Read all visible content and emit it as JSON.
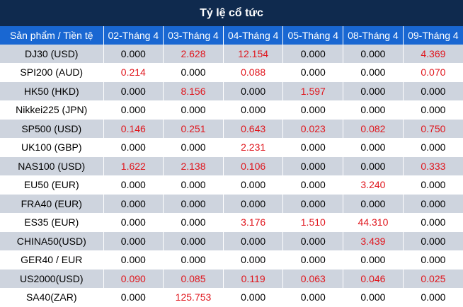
{
  "title": "Tỷ lệ cổ tức",
  "header": {
    "product": "Sản phẩm / Tiền tệ",
    "dates": [
      "02-Tháng 4",
      "03-Tháng 4",
      "04-Tháng 4",
      "05-Tháng 4",
      "08-Tháng 4",
      "09-Tháng 4"
    ]
  },
  "rows": [
    {
      "product": "DJ30 (USD)",
      "values": [
        "0.000",
        "2.628",
        "12.154",
        "0.000",
        "0.000",
        "4.369"
      ]
    },
    {
      "product": "SPI200 (AUD)",
      "values": [
        "0.214",
        "0.000",
        "0.088",
        "0.000",
        "0.000",
        "0.070"
      ]
    },
    {
      "product": "HK50 (HKD)",
      "values": [
        "0.000",
        "8.156",
        "0.000",
        "1.597",
        "0.000",
        "0.000"
      ]
    },
    {
      "product": "Nikkei225 (JPN)",
      "values": [
        "0.000",
        "0.000",
        "0.000",
        "0.000",
        "0.000",
        "0.000"
      ]
    },
    {
      "product": "SP500 (USD)",
      "values": [
        "0.146",
        "0.251",
        "0.643",
        "0.023",
        "0.082",
        "0.750"
      ]
    },
    {
      "product": "UK100 (GBP)",
      "values": [
        "0.000",
        "0.000",
        "2.231",
        "0.000",
        "0.000",
        "0.000"
      ]
    },
    {
      "product": "NAS100 (USD)",
      "values": [
        "1.622",
        "2.138",
        "0.106",
        "0.000",
        "0.000",
        "0.333"
      ]
    },
    {
      "product": "EU50 (EUR)",
      "values": [
        "0.000",
        "0.000",
        "0.000",
        "0.000",
        "3.240",
        "0.000"
      ]
    },
    {
      "product": "FRA40 (EUR)",
      "values": [
        "0.000",
        "0.000",
        "0.000",
        "0.000",
        "0.000",
        "0.000"
      ]
    },
    {
      "product": "ES35 (EUR)",
      "values": [
        "0.000",
        "0.000",
        "3.176",
        "1.510",
        "44.310",
        "0.000"
      ]
    },
    {
      "product": "CHINA50(USD)",
      "values": [
        "0.000",
        "0.000",
        "0.000",
        "0.000",
        "3.439",
        "0.000"
      ]
    },
    {
      "product": "GER40 / EUR",
      "values": [
        "0.000",
        "0.000",
        "0.000",
        "0.000",
        "0.000",
        "0.000"
      ]
    },
    {
      "product": "US2000(USD)",
      "values": [
        "0.090",
        "0.085",
        "0.119",
        "0.063",
        "0.046",
        "0.025"
      ]
    },
    {
      "product": "SA40(ZAR)",
      "values": [
        "0.000",
        "125.753",
        "0.000",
        "0.000",
        "0.000",
        "0.000"
      ]
    }
  ],
  "colors": {
    "title_bg": "#0f2a4e",
    "header_bg": "#1967d2",
    "row_alt": "#ced4de",
    "positive": "#e0161d"
  }
}
